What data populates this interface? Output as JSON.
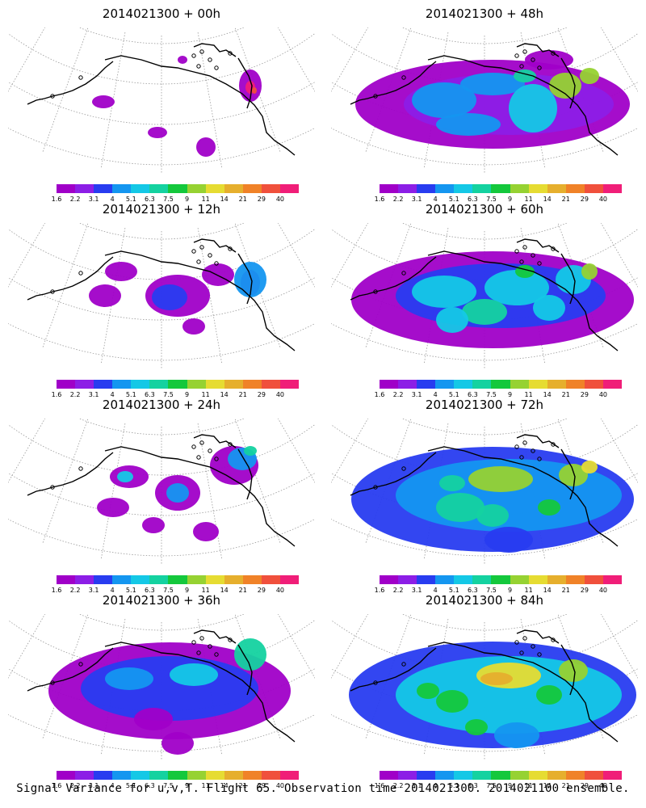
{
  "caption": "Signal Variance for u,v,T. Flight 65. Observation time 2014021300. 2014021100 ensemble.",
  "colorbar": {
    "labels": [
      "1.6",
      "2.2",
      "3.1",
      "4",
      "5.1",
      "6.3",
      "7.5",
      "9",
      "11",
      "14",
      "21",
      "29",
      "40"
    ],
    "colors": [
      "#a000c8",
      "#8c1ee6",
      "#283cf0",
      "#1496f0",
      "#14c8e6",
      "#14d2a0",
      "#14c83c",
      "#96d232",
      "#e6dc32",
      "#e6af2d",
      "#f08228",
      "#f0503c",
      "#f01e78"
    ]
  },
  "panels": [
    {
      "title": "2014021300 + 00h"
    },
    {
      "title": "2014021300 + 48h"
    },
    {
      "title": "2014021300 + 12h"
    },
    {
      "title": "2014021300 + 60h"
    },
    {
      "title": "2014021300 + 24h"
    },
    {
      "title": "2014021300 + 72h"
    },
    {
      "title": "2014021300 + 36h"
    },
    {
      "title": "2014021300 + 84h"
    }
  ]
}
